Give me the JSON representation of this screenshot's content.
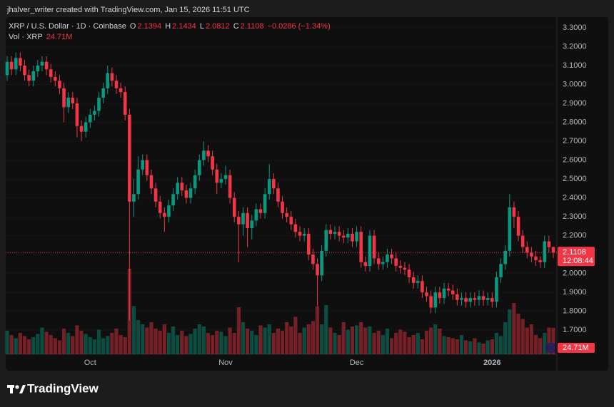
{
  "header": "jhalver_writer created with TradingView.com, Jan 15, 2026 11:51 UTC",
  "brand": "TradingView",
  "chart_data": {
    "type": "candlestick",
    "symbol": "XRP / U.S. Dollar · 1D · Coinbase",
    "legend_letters": [
      "O",
      "H",
      "L",
      "C"
    ],
    "change": "−0.0286 (−1.34%)",
    "volume_title": "Vol · XRP",
    "last_volume_label": "24.71M",
    "countdown": "12:08:44",
    "colors": {
      "up": "#089981",
      "down": "#f23645"
    },
    "categories": [
      null,
      null,
      null,
      null,
      null,
      null,
      null,
      null,
      null,
      null,
      null,
      null,
      null,
      null,
      null,
      null,
      null,
      null,
      null,
      "Oct",
      null,
      null,
      null,
      null,
      null,
      null,
      null,
      null,
      null,
      null,
      null,
      null,
      null,
      null,
      null,
      null,
      null,
      null,
      null,
      null,
      null,
      null,
      null,
      null,
      null,
      null,
      null,
      null,
      null,
      null,
      "Nov",
      null,
      null,
      null,
      null,
      null,
      null,
      null,
      null,
      null,
      null,
      null,
      null,
      null,
      null,
      null,
      null,
      null,
      null,
      null,
      null,
      null,
      null,
      null,
      null,
      null,
      null,
      null,
      null,
      null,
      "Dec",
      null,
      null,
      null,
      null,
      null,
      null,
      null,
      null,
      null,
      null,
      null,
      null,
      null,
      null,
      null,
      null,
      null,
      null,
      null,
      null,
      null,
      null,
      null,
      null,
      null,
      null,
      null,
      null,
      null,
      null,
      "2026",
      null,
      null,
      null,
      null,
      null,
      null,
      null,
      null,
      null,
      null,
      null,
      null,
      null,
      null
    ],
    "open": [
      3.05,
      3.12,
      3.08,
      3.14,
      3.1,
      3.05,
      3.02,
      3.07,
      3.1,
      3.12,
      3.08,
      3.04,
      3.02,
      2.98,
      2.88,
      2.93,
      2.9,
      2.78,
      2.75,
      2.8,
      2.84,
      2.86,
      2.93,
      2.98,
      3.06,
      3.02,
      2.98,
      2.96,
      2.84,
      2.38,
      2.42,
      2.55,
      2.6,
      2.52,
      2.45,
      2.38,
      2.32,
      2.3,
      2.36,
      2.42,
      2.48,
      2.44,
      2.4,
      2.45,
      2.52,
      2.6,
      2.65,
      2.62,
      2.55,
      2.48,
      2.5,
      2.52,
      2.4,
      2.3,
      2.26,
      2.32,
      2.24,
      2.28,
      2.34,
      2.32,
      2.42,
      2.5,
      2.45,
      2.38,
      2.32,
      2.3,
      2.26,
      2.22,
      2.2,
      2.21,
      2.1,
      2.05,
      1.99,
      2.12,
      2.23,
      2.21,
      2.22,
      2.2,
      2.19,
      2.21,
      2.17,
      2.22,
      2.06,
      2.04,
      2.2,
      2.08,
      2.05,
      2.06,
      2.1,
      2.08,
      2.04,
      2.03,
      2.02,
      1.98,
      1.95,
      1.96,
      1.9,
      1.88,
      1.82,
      1.9,
      1.87,
      1.92,
      1.91,
      1.89,
      1.86,
      1.87,
      1.85,
      1.87,
      1.86,
      1.88,
      1.86,
      1.87,
      1.85,
      1.98,
      2.05,
      2.12,
      2.35,
      2.3,
      2.2,
      2.14,
      2.11,
      2.09,
      2.07,
      2.06,
      2.17,
      2.1394
    ],
    "high": [
      3.15,
      3.15,
      3.17,
      3.17,
      3.13,
      3.08,
      3.1,
      3.13,
      3.15,
      3.15,
      3.11,
      3.07,
      3.05,
      3.01,
      2.96,
      2.96,
      2.93,
      2.81,
      2.83,
      2.87,
      2.89,
      2.96,
      3.01,
      3.1,
      3.09,
      3.05,
      3.01,
      2.99,
      2.87,
      2.5,
      2.62,
      2.63,
      2.63,
      2.55,
      2.48,
      2.41,
      2.35,
      2.39,
      2.45,
      2.51,
      2.51,
      2.47,
      2.48,
      2.55,
      2.63,
      2.7,
      2.68,
      2.65,
      2.58,
      2.53,
      2.57,
      2.55,
      2.43,
      2.33,
      2.35,
      2.35,
      2.31,
      2.37,
      2.37,
      2.45,
      2.58,
      2.53,
      2.48,
      2.41,
      2.35,
      2.33,
      2.29,
      2.25,
      2.24,
      2.24,
      2.13,
      2.08,
      2.15,
      2.26,
      2.26,
      2.25,
      2.25,
      2.23,
      2.24,
      2.24,
      2.25,
      2.25,
      2.09,
      2.23,
      2.23,
      2.11,
      2.09,
      2.13,
      2.13,
      2.11,
      2.07,
      2.06,
      2.05,
      2.01,
      1.99,
      1.99,
      1.93,
      1.91,
      1.93,
      1.93,
      1.95,
      1.95,
      1.94,
      1.92,
      1.9,
      1.9,
      1.9,
      1.9,
      1.91,
      1.91,
      1.9,
      1.9,
      2.01,
      2.08,
      2.15,
      2.42,
      2.38,
      2.33,
      2.23,
      2.17,
      2.14,
      2.12,
      2.09,
      2.2,
      2.2,
      2.1434
    ],
    "low": [
      3.02,
      3.05,
      3.05,
      3.07,
      3.02,
      2.99,
      2.99,
      3.04,
      3.07,
      3.05,
      3.01,
      2.99,
      2.95,
      2.8,
      2.85,
      2.87,
      2.72,
      2.7,
      2.72,
      2.77,
      2.81,
      2.83,
      2.9,
      2.95,
      2.99,
      2.95,
      2.93,
      2.81,
      1.75,
      2.3,
      2.39,
      2.52,
      2.49,
      2.42,
      2.35,
      2.29,
      2.22,
      2.27,
      2.33,
      2.39,
      2.41,
      2.37,
      2.37,
      2.42,
      2.49,
      2.57,
      2.59,
      2.52,
      2.42,
      2.45,
      2.47,
      2.37,
      2.27,
      2.06,
      2.2,
      2.14,
      2.18,
      2.25,
      2.29,
      2.29,
      2.39,
      2.42,
      2.35,
      2.29,
      2.27,
      2.23,
      2.19,
      2.17,
      2.17,
      2.07,
      2.02,
      1.83,
      1.96,
      2.09,
      2.18,
      2.18,
      2.17,
      2.16,
      2.16,
      2.14,
      2.14,
      2.03,
      2.01,
      2.01,
      2.05,
      2.02,
      2.02,
      2.03,
      2.05,
      2.01,
      2.0,
      1.99,
      1.95,
      1.92,
      1.92,
      1.87,
      1.85,
      1.79,
      1.79,
      1.84,
      1.84,
      1.88,
      1.86,
      1.83,
      1.83,
      1.82,
      1.82,
      1.83,
      1.83,
      1.83,
      1.83,
      1.82,
      1.82,
      1.95,
      2.02,
      2.09,
      2.24,
      2.17,
      2.11,
      2.08,
      2.06,
      2.04,
      2.03,
      2.03,
      2.11,
      2.0812
    ],
    "close": [
      3.12,
      3.08,
      3.14,
      3.1,
      3.05,
      3.02,
      3.07,
      3.1,
      3.12,
      3.08,
      3.04,
      3.02,
      2.98,
      2.88,
      2.93,
      2.9,
      2.78,
      2.75,
      2.8,
      2.84,
      2.86,
      2.93,
      2.98,
      3.06,
      3.02,
      2.98,
      2.96,
      2.84,
      2.38,
      2.42,
      2.55,
      2.6,
      2.52,
      2.45,
      2.38,
      2.32,
      2.3,
      2.36,
      2.42,
      2.48,
      2.44,
      2.4,
      2.45,
      2.52,
      2.6,
      2.65,
      2.62,
      2.55,
      2.48,
      2.5,
      2.52,
      2.4,
      2.3,
      2.26,
      2.32,
      2.24,
      2.28,
      2.34,
      2.32,
      2.42,
      2.5,
      2.45,
      2.38,
      2.32,
      2.3,
      2.26,
      2.22,
      2.2,
      2.21,
      2.1,
      2.05,
      1.99,
      2.12,
      2.23,
      2.21,
      2.22,
      2.2,
      2.19,
      2.21,
      2.17,
      2.22,
      2.06,
      2.04,
      2.2,
      2.08,
      2.05,
      2.06,
      2.1,
      2.08,
      2.04,
      2.03,
      2.02,
      1.98,
      1.95,
      1.96,
      1.9,
      1.88,
      1.82,
      1.9,
      1.87,
      1.92,
      1.91,
      1.89,
      1.86,
      1.87,
      1.85,
      1.87,
      1.86,
      1.88,
      1.86,
      1.87,
      1.85,
      1.98,
      2.05,
      2.12,
      2.35,
      2.3,
      2.2,
      2.14,
      2.11,
      2.09,
      2.07,
      2.06,
      2.17,
      2.1394,
      2.1108
    ],
    "volume": [
      22,
      18,
      15,
      20,
      17,
      14,
      16,
      19,
      25,
      21,
      18,
      15,
      13,
      24,
      20,
      17,
      27,
      22,
      19,
      16,
      14,
      23,
      15,
      17,
      20,
      24,
      18,
      16,
      80,
      45,
      32,
      28,
      25,
      30,
      24,
      22,
      28,
      20,
      26,
      18,
      22,
      17,
      19,
      24,
      28,
      26,
      20,
      18,
      22,
      21,
      17,
      25,
      20,
      44,
      30,
      24,
      22,
      18,
      27,
      25,
      28,
      20,
      24,
      22,
      30,
      26,
      35,
      20,
      25,
      28,
      31,
      45,
      28,
      46,
      25,
      20,
      18,
      30,
      23,
      26,
      27,
      30,
      25,
      26,
      20,
      22,
      18,
      24,
      15,
      20,
      23,
      21,
      16,
      18,
      20,
      14,
      22,
      25,
      28,
      24,
      17,
      16,
      15,
      14,
      18,
      13,
      12,
      15,
      11,
      10,
      13,
      14,
      20,
      17,
      30,
      42,
      48,
      38,
      33,
      25,
      28,
      18,
      15,
      20,
      25,
      24.71
    ],
    "ylim": [
      1.6441,
      3.3
    ],
    "yticks": [
      {
        "value": 1.7,
        "label": "1.7000"
      },
      {
        "value": 1.8,
        "label": "1.8000"
      },
      {
        "value": 1.9,
        "label": "1.9000"
      },
      {
        "value": 2.0,
        "label": "2.0000"
      },
      {
        "value": 2.1,
        "label": "2.1000"
      },
      {
        "value": 2.2,
        "label": "2.2000"
      },
      {
        "value": 2.3,
        "label": "2.3000"
      },
      {
        "value": 2.4,
        "label": "2.4000"
      },
      {
        "value": 2.5,
        "label": "2.5000"
      },
      {
        "value": 2.6,
        "label": "2.6000"
      },
      {
        "value": 2.7,
        "label": "2.7000"
      },
      {
        "value": 2.8,
        "label": "2.8000"
      },
      {
        "value": 2.9,
        "label": "2.9000"
      },
      {
        "value": 3.0,
        "label": "3.0000"
      },
      {
        "value": 3.1,
        "label": "3.1000"
      },
      {
        "value": 3.2,
        "label": "3.2000"
      },
      {
        "value": 3.3,
        "label": "3.3000"
      }
    ]
  }
}
